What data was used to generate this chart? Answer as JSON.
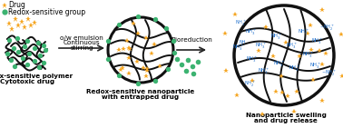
{
  "legend_drug_label": "Drug",
  "legend_redox_label": "Redox-sensitive group",
  "drug_color": "#F5A623",
  "redox_color": "#3CB371",
  "arrow_color": "#222222",
  "polymer_color": "#111111",
  "nh3_color": "#1E6FCC",
  "label1_line1": "Redox-sensitive polymer",
  "label1_line2": "Cytotoxic drug",
  "label2_line1": "Redox-sensitive nanoparticle",
  "label2_line2": "with entrapped drug",
  "label3_line1": "Nanoparticle swelling",
  "label3_line2": "and drug release",
  "arrow1_text_line1": "o/w emulsion",
  "arrow1_text_line2": "Continuous",
  "arrow1_text_line3": "stirring",
  "arrow2_text": "Bioreduction",
  "bg_color": "#ffffff",
  "font_size_label": 5.2,
  "font_size_legend": 5.5,
  "font_size_arrow": 5.2
}
